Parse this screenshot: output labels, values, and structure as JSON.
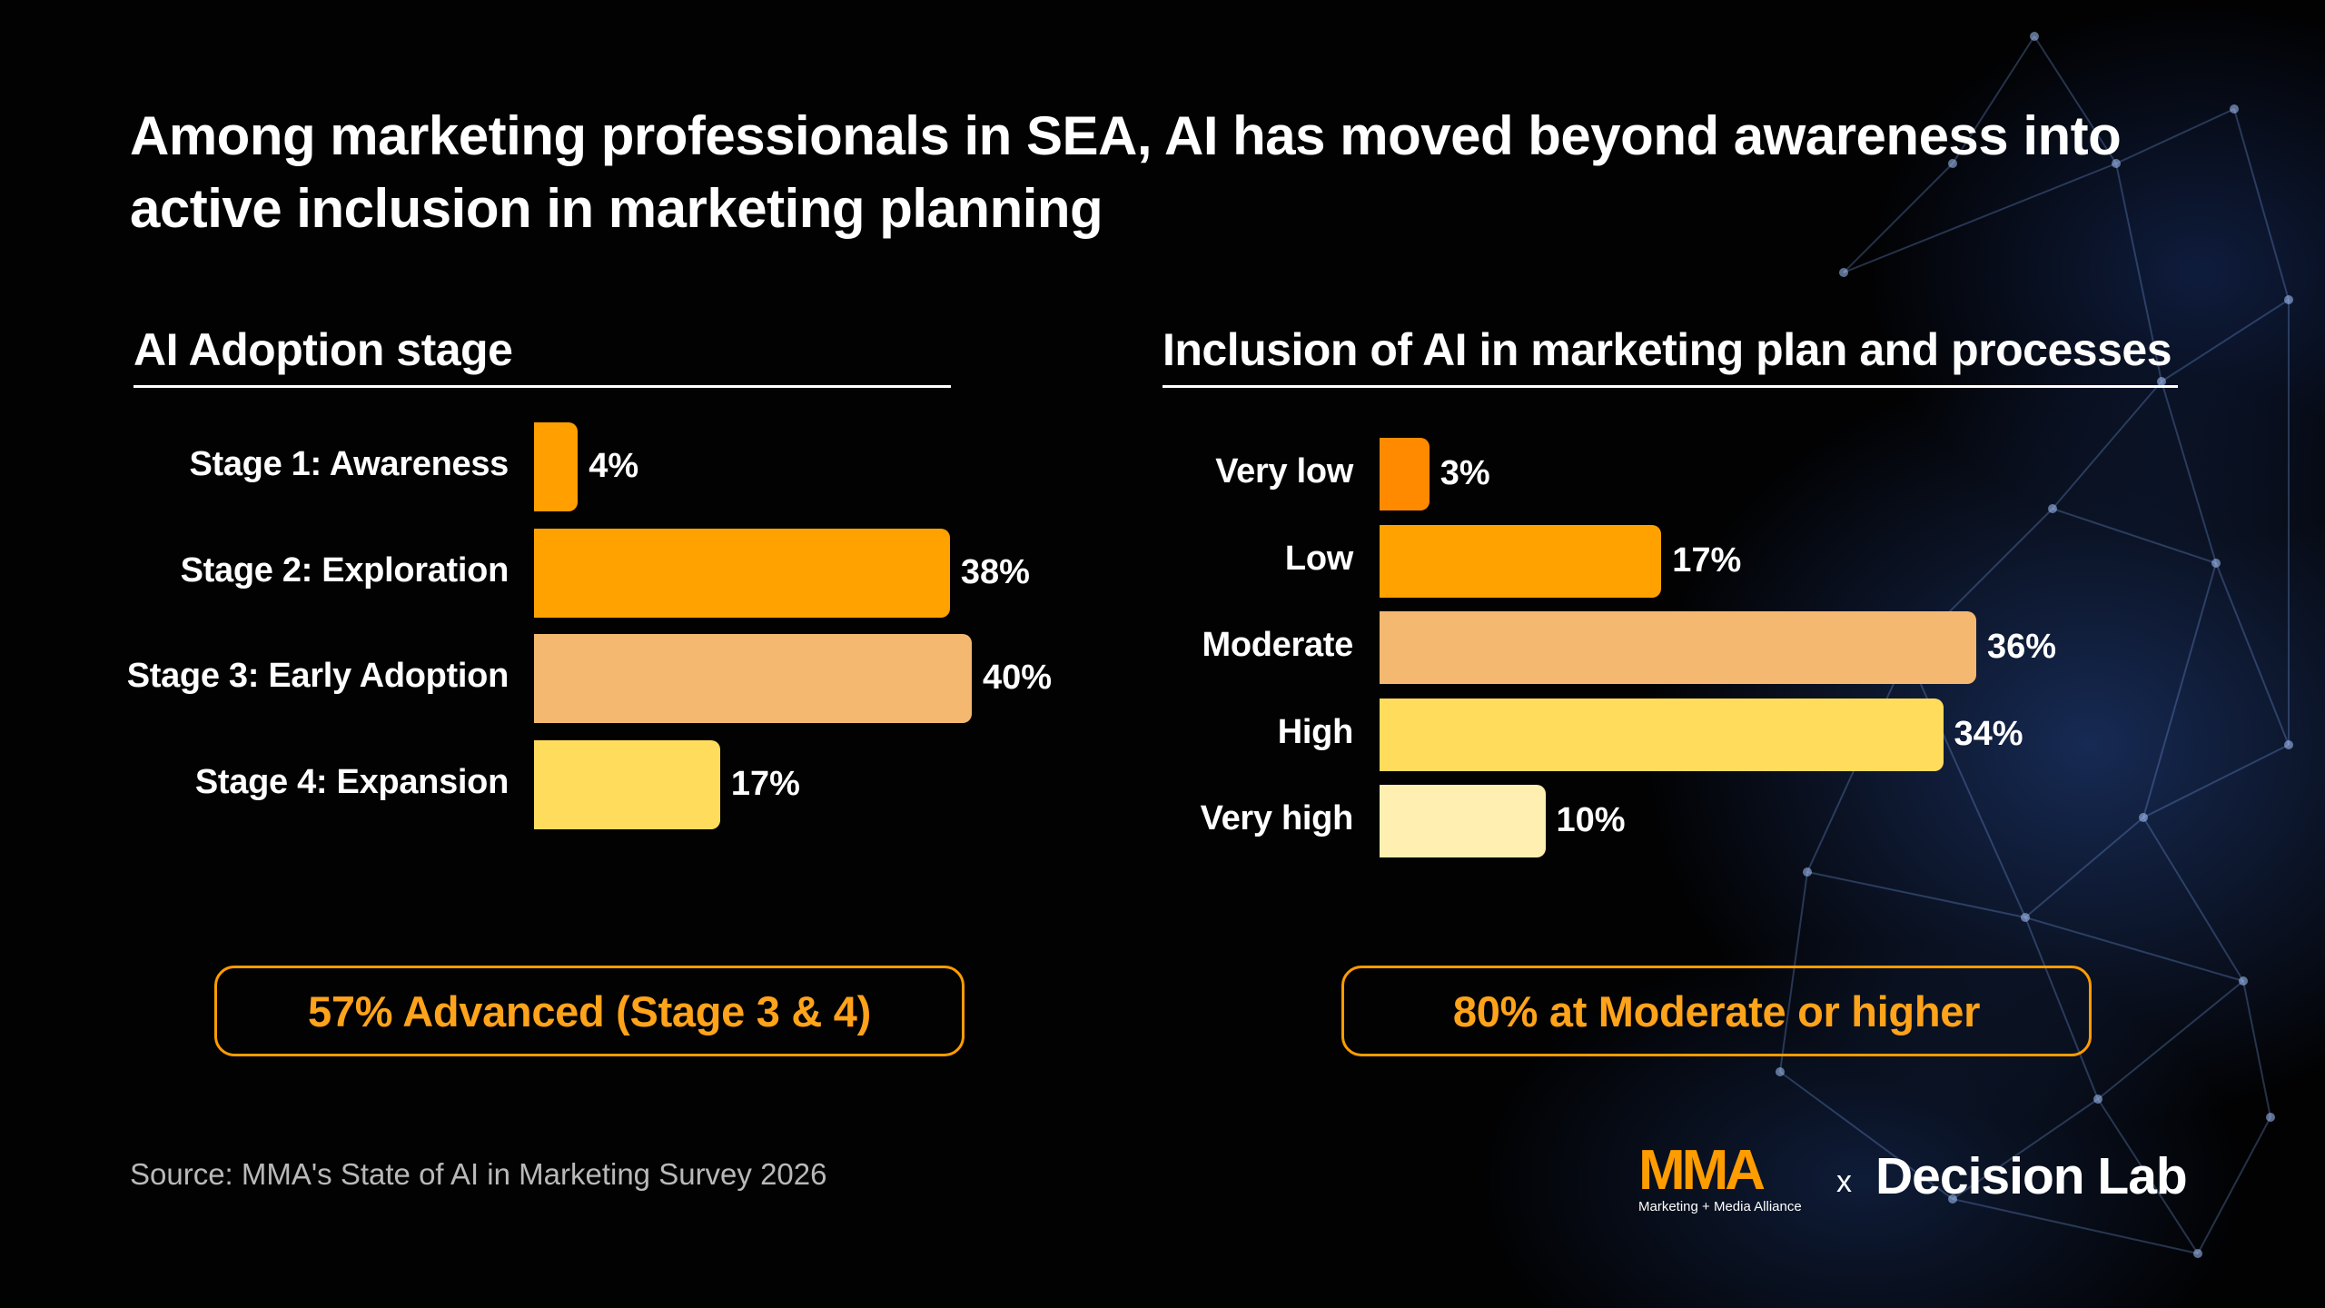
{
  "title": "Among marketing professionals in SEA, AI has moved beyond awareness into active inclusion in marketing planning",
  "chart_data": [
    {
      "type": "bar",
      "orientation": "horizontal",
      "title": "AI Adoption stage",
      "categories": [
        "Stage 1: Awareness",
        "Stage 2: Exploration",
        "Stage 3: Early Adoption",
        "Stage 4: Expansion"
      ],
      "values": [
        4,
        38,
        40,
        17
      ],
      "value_labels": [
        "4%",
        "38%",
        "40%",
        "17%"
      ],
      "colors": [
        "#ff9f00",
        "#ffa200",
        "#f4b871",
        "#ffdc5c"
      ],
      "xlim": [
        0,
        40
      ],
      "grid": false,
      "callout": "57% Advanced (Stage 3 & 4)"
    },
    {
      "type": "bar",
      "orientation": "horizontal",
      "title": "Inclusion of AI in marketing plan and processes",
      "categories": [
        "Very low",
        "Low",
        "Moderate",
        "High",
        "Very high"
      ],
      "values": [
        3,
        17,
        36,
        34,
        10
      ],
      "value_labels": [
        "3%",
        "17%",
        "36%",
        "34%",
        "10%"
      ],
      "colors": [
        "#ff8a00",
        "#ffa200",
        "#f4b871",
        "#ffdc5c",
        "#ffefb0"
      ],
      "xlim": [
        0,
        36
      ],
      "grid": false,
      "callout": "80% at Moderate or higher"
    }
  ],
  "source": "Source: MMA's State of AI in Marketing Survey 2026",
  "logos": {
    "mma": "MMA",
    "mma_sub": "Marketing + Media Alliance",
    "separator": "x",
    "partner": "Decision Lab"
  },
  "colors": {
    "accent": "#ff9c00",
    "background": "#020203"
  }
}
